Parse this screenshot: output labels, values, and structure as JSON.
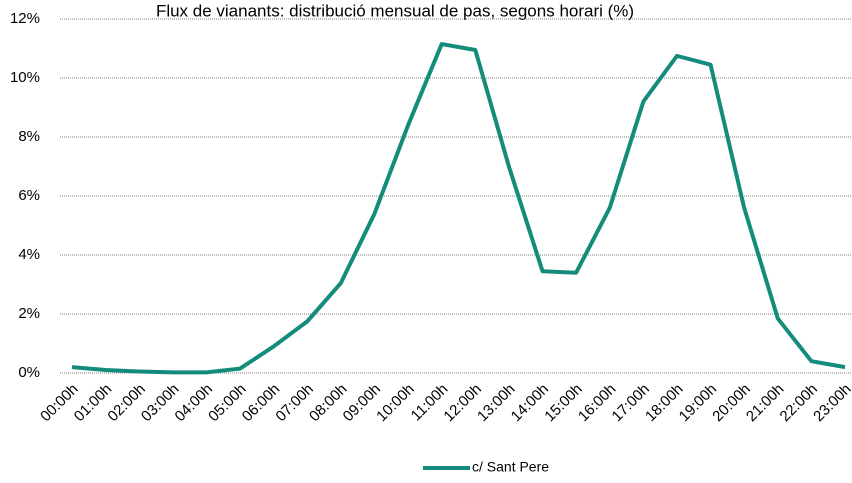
{
  "chart_data": {
    "type": "line",
    "title": "Flux de vianants: distribució mensual de pas, segons horari (%)",
    "categories": [
      "00:00h",
      "01:00h",
      "02:00h",
      "03:00h",
      "04:00h",
      "05:00h",
      "06:00h",
      "07:00h",
      "08:00h",
      "09:00h",
      "10:00h",
      "11:00h",
      "12:00h",
      "13:00h",
      "14:00h",
      "15:00h",
      "16:00h",
      "17:00h",
      "18:00h",
      "19:00h",
      "20:00h",
      "21:00h",
      "22:00h",
      "23:00h"
    ],
    "series": [
      {
        "name": "c/ Sant Pere",
        "color": "#138c7c",
        "values": [
          0.2,
          0.1,
          0.05,
          0.02,
          0.02,
          0.15,
          0.9,
          1.75,
          3.05,
          5.4,
          8.4,
          11.15,
          10.95,
          7.0,
          3.45,
          3.4,
          5.6,
          9.2,
          10.75,
          10.45,
          5.6,
          1.85,
          0.4,
          0.2
        ]
      }
    ],
    "ylim": [
      0,
      12
    ],
    "yticks": [
      {
        "value": 0,
        "label": "0%"
      },
      {
        "value": 2,
        "label": "2%"
      },
      {
        "value": 4,
        "label": "4%"
      },
      {
        "value": 6,
        "label": "6%"
      },
      {
        "value": 8,
        "label": "8%"
      },
      {
        "value": 10,
        "label": "10%"
      },
      {
        "value": 12,
        "label": "12%"
      }
    ],
    "grid": true,
    "legend": "bottom"
  }
}
